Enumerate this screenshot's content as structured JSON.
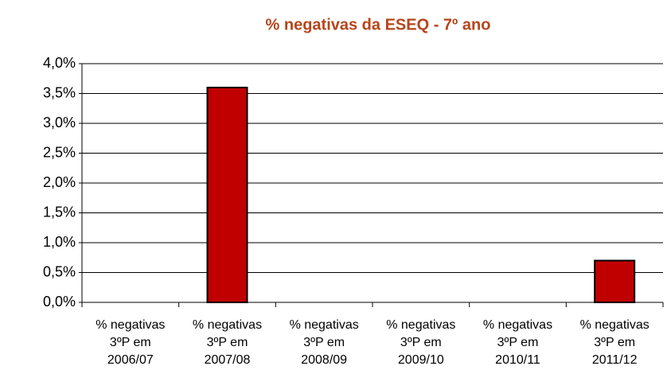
{
  "chart_data": {
    "type": "bar",
    "title": "% negativas da ESEQ - 7º ano",
    "categories": [
      "% negativas\n3ºP em\n2006/07",
      "% negativas\n3ºP em\n2007/08",
      "% negativas\n3ºP em\n2008/09",
      "% negativas\n3ºP em\n2009/10",
      "% negativas\n3ºP em\n2010/11",
      "% negativas\n3ºP em\n2011/12"
    ],
    "values": [
      0,
      3.6,
      0,
      0,
      0,
      0.7
    ],
    "color": "#c00000",
    "ylim": [
      0,
      4
    ],
    "yticks": [
      {
        "value": 0,
        "label": "0,0%"
      },
      {
        "value": 0.5,
        "label": "0,5%"
      },
      {
        "value": 1,
        "label": "1,0%"
      },
      {
        "value": 1.5,
        "label": "1,5%"
      },
      {
        "value": 2,
        "label": "2,0%"
      },
      {
        "value": 2.5,
        "label": "2,5%"
      },
      {
        "value": 3,
        "label": "3,0%"
      },
      {
        "value": 3.5,
        "label": "3,5%"
      },
      {
        "value": 4,
        "label": "4,0%"
      }
    ],
    "grid": true
  }
}
